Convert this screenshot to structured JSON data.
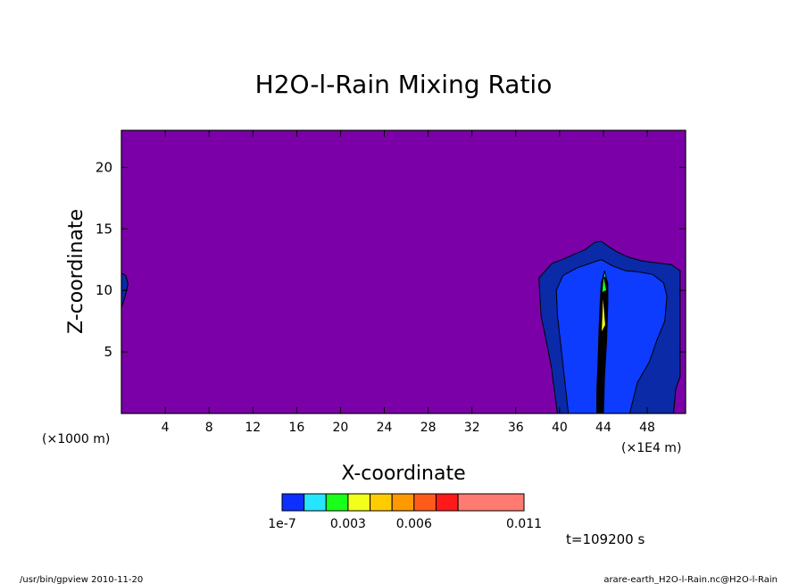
{
  "chart_data": {
    "type": "heatmap",
    "title": "H2O-l-Rain Mixing Ratio",
    "xlabel": "X-coordinate",
    "ylabel": "Z-coordinate",
    "x_unit": "(×1000 m)",
    "x_scale": "(×1E4 m)",
    "xlim": [
      0,
      51.5
    ],
    "ylim": [
      0,
      23
    ],
    "x_ticks": [
      4,
      8,
      12,
      16,
      20,
      24,
      28,
      32,
      36,
      40,
      44,
      48
    ],
    "y_ticks": [
      5,
      10,
      15,
      20
    ],
    "background_color": "#7b00a8",
    "colorbar": {
      "colors": [
        "#0d2fff",
        "#26e6ff",
        "#1aff1a",
        "#f2ff1a",
        "#ffcc00",
        "#ff9900",
        "#ff5c1a",
        "#ff1a1a",
        "#ff7a70"
      ],
      "labels": [
        {
          "text": "1e-7",
          "at": 0
        },
        {
          "text": "0.003",
          "at": 0.003
        },
        {
          "text": "0.006",
          "at": 0.006
        },
        {
          "text": "0.011",
          "at": 0.011
        }
      ],
      "bounds": [
        0,
        0.001,
        0.002,
        0.003,
        0.004,
        0.005,
        0.006,
        0.007,
        0.008,
        0.011
      ]
    },
    "regions": [
      {
        "name": "outer-cloud",
        "color": "#0a2aa8",
        "points": [
          [
            0,
            8.6
          ],
          [
            0.3,
            9.4
          ],
          [
            0.6,
            10.5
          ],
          [
            0.4,
            11.2
          ],
          [
            0,
            11.4
          ]
        ]
      },
      {
        "name": "outer-cloud",
        "color": "#0a2aa8",
        "points": [
          [
            39.8,
            0
          ],
          [
            39.2,
            4
          ],
          [
            38.3,
            8
          ],
          [
            38.1,
            11
          ],
          [
            38.6,
            11.5
          ],
          [
            39.3,
            12.2
          ],
          [
            40.5,
            12.6
          ],
          [
            41.5,
            13
          ],
          [
            42.3,
            13.3
          ],
          [
            43.2,
            13.9
          ],
          [
            43.8,
            14
          ],
          [
            44.4,
            13.6
          ],
          [
            45.3,
            13.1
          ],
          [
            46.3,
            12.7
          ],
          [
            47.5,
            12.4
          ],
          [
            49.2,
            12.2
          ],
          [
            50.2,
            12.1
          ],
          [
            51,
            11.6
          ],
          [
            51,
            7
          ],
          [
            51,
            3
          ],
          [
            50.6,
            2
          ],
          [
            50.4,
            0
          ]
        ]
      },
      {
        "name": "inner-cloud",
        "color": "#0d3cff",
        "points": [
          [
            40.8,
            0
          ],
          [
            40.3,
            4
          ],
          [
            39.8,
            8
          ],
          [
            39.7,
            10
          ],
          [
            40.3,
            11.2
          ],
          [
            41.5,
            11.8
          ],
          [
            42.8,
            12.2
          ],
          [
            43.8,
            12.5
          ],
          [
            44.8,
            12
          ],
          [
            46,
            11.6
          ],
          [
            47.2,
            11.5
          ],
          [
            48.5,
            11.3
          ],
          [
            49.5,
            10.6
          ],
          [
            49.8,
            9.5
          ],
          [
            49.6,
            7.5
          ],
          [
            48.9,
            6
          ],
          [
            48.2,
            4.2
          ],
          [
            47.1,
            2.5
          ],
          [
            46.4,
            0
          ]
        ]
      },
      {
        "name": "core",
        "color": "#000000",
        "points": [
          [
            43.4,
            0
          ],
          [
            43.4,
            2
          ],
          [
            43.5,
            4
          ],
          [
            43.6,
            7
          ],
          [
            43.7,
            9
          ],
          [
            43.8,
            10.6
          ],
          [
            44.1,
            11.4
          ],
          [
            44.4,
            10.6
          ],
          [
            44.4,
            9
          ],
          [
            44.3,
            6
          ],
          [
            44.1,
            3
          ],
          [
            44.0,
            0
          ]
        ]
      },
      {
        "name": "core-green",
        "color": "#1aff1a",
        "points": [
          [
            43.85,
            9.8
          ],
          [
            44.0,
            11.3
          ],
          [
            44.3,
            10
          ]
        ]
      },
      {
        "name": "core-yellow",
        "color": "#f2ff1a",
        "points": [
          [
            43.8,
            6.5
          ],
          [
            43.95,
            9.9
          ],
          [
            44.2,
            7.2
          ]
        ]
      },
      {
        "name": "core-cyan",
        "color": "#26e6ff",
        "points": [
          [
            44.0,
            11.0
          ],
          [
            44.1,
            11.6
          ],
          [
            44.25,
            11.1
          ]
        ]
      }
    ],
    "annotation": "t=109200 s"
  },
  "footer": {
    "left": "/usr/bin/gpview   2010-11-20",
    "right": "arare-earth_H2O-l-Rain.nc@H2O-l-Rain"
  }
}
